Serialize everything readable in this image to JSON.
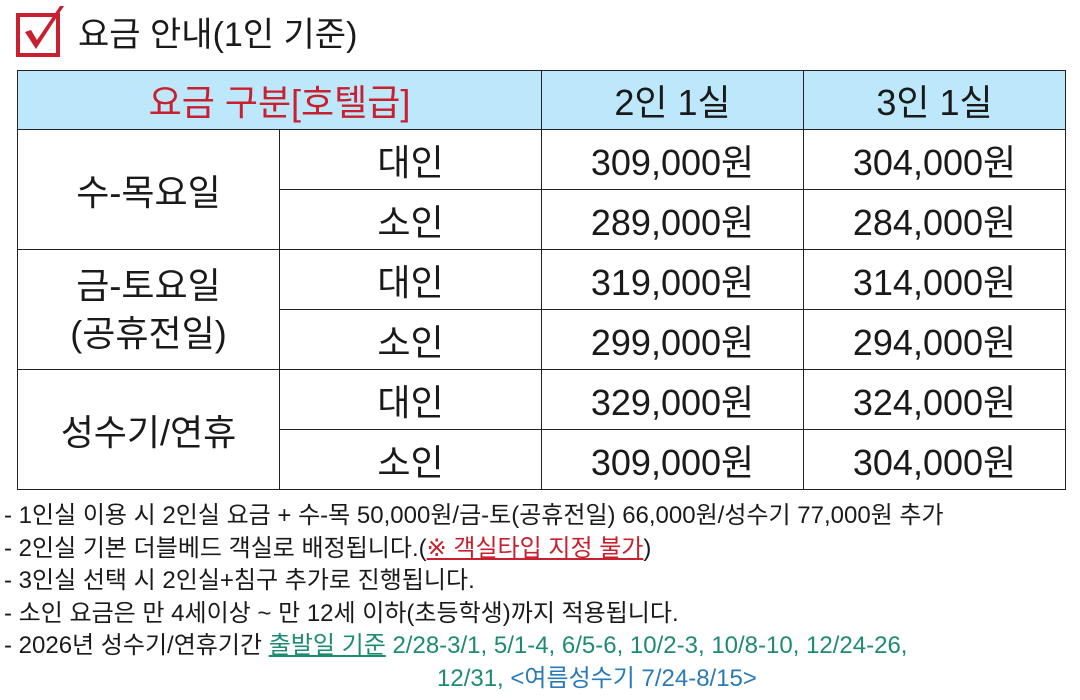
{
  "title": "요금 안내(1인 기준)",
  "colors": {
    "accent_red": "#c8202e",
    "header_bg": "#bde8fb",
    "green": "#1d8a72",
    "blue": "#2a7ab8"
  },
  "table": {
    "headers": [
      "요금 구분[호텔급]",
      "2인 1실",
      "3인 1실"
    ],
    "groups": [
      {
        "label": "수-목요일",
        "rows": [
          {
            "type": "대인",
            "p2": "309,000원",
            "p3": "304,000원"
          },
          {
            "type": "소인",
            "p2": "289,000원",
            "p3": "284,000원"
          }
        ]
      },
      {
        "label_line1": "금-토요일",
        "label_line2": "(공휴전일)",
        "rows": [
          {
            "type": "대인",
            "p2": "319,000원",
            "p3": "314,000원"
          },
          {
            "type": "소인",
            "p2": "299,000원",
            "p3": "294,000원"
          }
        ]
      },
      {
        "label": "성수기/연휴",
        "rows": [
          {
            "type": "대인",
            "p2": "329,000원",
            "p3": "324,000원"
          },
          {
            "type": "소인",
            "p2": "309,000원",
            "p3": "304,000원"
          }
        ]
      }
    ]
  },
  "notes": {
    "n1": "- 1인실 이용 시 2인실 요금 + 수-목 50,000원/금-토(공휴전일) 66,000원/성수기 77,000원 추가",
    "n2a": "- 2인실 기본 더블베드 객실로 배정됩니다.(",
    "n2b": "※ 객실타입 지정 불가",
    "n2c": ")",
    "n3": "- 3인실 선택 시 2인실+침구 추가로 진행됩니다.",
    "n4": "- 소인 요금은 만 4세이상 ~ 만 12세 이하(초등학생)까지 적용됩니다.",
    "n5a": "- 2026년 성수기/연휴기간 ",
    "n5b": "출발일 기준",
    "n5c": " 2/28-3/1, 5/1-4, 6/5-6, 10/2-3, 10/8-10, 12/24-26,",
    "n5d": "12/31, ",
    "n5e": "<여름성수기 7/24-8/15>"
  }
}
